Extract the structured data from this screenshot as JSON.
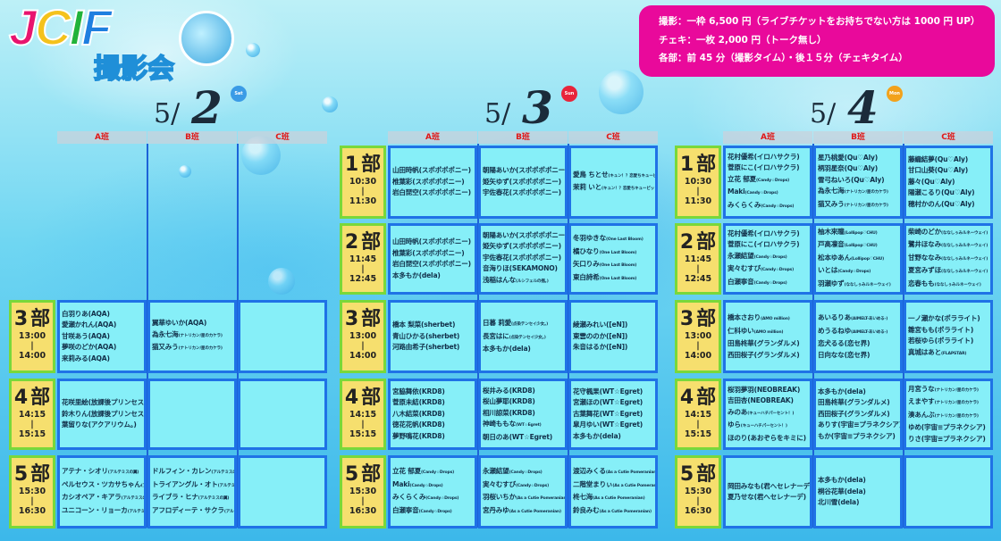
{
  "logo": {
    "letters": [
      "J",
      "C",
      "I",
      "F"
    ],
    "letter_colors": [
      "#e8146e",
      "#f4c21c",
      "#22b33a",
      "#1f7fe0"
    ],
    "subtitle": "撮影会"
  },
  "info": {
    "lines": [
      "撮影：一枠 6,500 円（ライブチケットをお持ちでない方は 1000 円 UP）",
      "チェキ：一枚 2,000 円（トーク無し）",
      "各部：前 45 分（撮影タイム）・後１５分（チェキタイム）"
    ]
  },
  "colors": {
    "info_bg": "#e9099b",
    "cell_bg": "#86eff8",
    "cell_border": "#1f72e6",
    "time_bg": "#f6df6e",
    "time_border": "#79d83a",
    "column_header_text": "#e01818"
  },
  "part_suffix": "部",
  "time_separator": "|",
  "days": [
    {
      "date_prefix": "5/",
      "date_num": "2",
      "weekday": "Sat",
      "weekday_color": "#3a9be6",
      "columns": [
        "A班",
        "B班",
        "C班"
      ],
      "sessions": [
        {
          "part": "3",
          "start": "13:00",
          "end": "14:00",
          "cells": [
            [
              [
                "白羽りあ",
                "(AQA)"
              ],
              [
                "愛瀬かれん",
                "(AQA)"
              ],
              [
                "甘咲あう",
                "(AQA)"
              ],
              [
                "夢咲のどか",
                "(AQA)"
              ],
              [
                "来莉みる",
                "(AQA)"
              ]
            ],
            [
              [
                "翼華ゆいか",
                "(AQA)"
              ],
              [
                "為永七海",
                "(ナトリカン/星のカケラ)"
              ],
              [
                "猫又みう",
                "(ナトリカン/星のカケラ)"
              ]
            ],
            []
          ]
        },
        {
          "part": "4",
          "start": "14:15",
          "end": "15:15",
          "cells": [
            [
              [
                "花咲里絵",
                "(放課後プリンセス)"
              ],
              [
                "鈴木りん",
                "(放課後プリンセス)"
              ],
              [
                "葉留りな",
                "(アクアリウム。)"
              ]
            ],
            [],
            []
          ]
        },
        {
          "part": "5",
          "start": "15:30",
          "end": "16:30",
          "cells": [
            [
              [
                "アテナ・シオリ",
                "(アルテミスの翼)"
              ],
              [
                "ペルセウス・ツカサちゃん",
                "(アルテミスの翼)"
              ],
              [
                "カシオペア・キアラ",
                "(アルテミスの翼)"
              ],
              [
                "ユニコーン・リョーカ",
                "(アルテミスの翼)"
              ]
            ],
            [
              [
                "ドルフィン・カレン",
                "(アルテミスの翼)"
              ],
              [
                "トライアングル・オト",
                "(アルテミスの翼)"
              ],
              [
                "ライブラ・ヒナ",
                "(アルテミスの翼)"
              ],
              [
                "アフロディーテ・サクラ",
                "(アルテミスの翼)"
              ]
            ],
            []
          ]
        }
      ]
    },
    {
      "date_prefix": "5/",
      "date_num": "3",
      "weekday": "Sun",
      "weekday_color": "#e8243a",
      "columns": [
        "A班",
        "B班",
        "C班"
      ],
      "sessions": [
        {
          "part": "1",
          "start": "10:30",
          "end": "11:30",
          "cells": [
            [
              [
                "山田時帆",
                "(スポポポポニー)"
              ],
              [
                "椎葉彩",
                "(スポポポポニー)"
              ],
              [
                "岩白琵空",
                "(スポポポポニー)"
              ]
            ],
            [
              [
                "朝陽あいか",
                "(スポポポポニー)"
              ],
              [
                "姫矢ゆず",
                "(スポポポポニー)"
              ],
              [
                "宇佐春花",
                "(スポポポポニー)"
              ]
            ],
            [
              [
                "愛鳥 ちとせ",
                "(キュン！？恋愛ちキューピッド)"
              ],
              [
                "茉莉 いと",
                "(キュン！？恋愛ちキューピッド)"
              ]
            ]
          ]
        },
        {
          "part": "2",
          "start": "11:45",
          "end": "12:45",
          "cells": [
            [
              [
                "山田時帆",
                "(スポポポポニー)"
              ],
              [
                "椎葉彩",
                "(スポポポポニー)"
              ],
              [
                "岩白琵空",
                "(スポポポポニー)"
              ],
              [
                "本多もか",
                "(dela)"
              ]
            ],
            [
              [
                "朝陽あいか",
                "(スポポポポニー)"
              ],
              [
                "姫矢ゆず",
                "(スポポポポニー)"
              ],
              [
                "宇佐春花",
                "(スポポポポニー)"
              ],
              [
                "音海りほ",
                "(SEKAMONO)"
              ],
              [
                "浅稲はんな",
                "(ルシフェルの揺。)"
              ]
            ],
            [
              [
                "冬羽ゆきな",
                "(One Last Bloom)"
              ],
              [
                "橘ひなり",
                "(One Last Bloom)"
              ],
              [
                "矢口りみ",
                "(One Last Bloom)"
              ],
              [
                "東白詩希",
                "(One Last Bloom)"
              ]
            ]
          ]
        },
        {
          "part": "3",
          "start": "13:00",
          "end": "14:00",
          "cells": [
            [
              [
                "橋本 梨菜",
                "(sherbet)"
              ],
              [
                "青山ひかる",
                "(sherbet)"
              ],
              [
                "河路由希子",
                "(sherbet)"
              ]
            ],
            [
              [
                "日暮 莉愛",
                "(点染テンセイ少女。)"
              ],
              [
                "長宮はに",
                "(点染テンセイ少女。)"
              ],
              [
                "本多もか",
                "(dela)"
              ]
            ],
            [
              [
                "綾瀬みれい",
                "([eN])"
              ],
              [
                "東雲ののか",
                "([eN])"
              ],
              [
                "朱音はるか",
                "([eN])"
              ]
            ]
          ]
        },
        {
          "part": "4",
          "start": "14:15",
          "end": "15:15",
          "cells": [
            [
              [
                "宮脇舞依",
                "(KRD8)"
              ],
              [
                "菅原未結",
                "(KRD8)"
              ],
              [
                "八木結菜",
                "(KRD8)"
              ],
              [
                "徳花花帆",
                "(KRD8)"
              ],
              [
                "夢野鳴花",
                "(KRD8)"
              ]
            ],
            [
              [
                "桜井みる",
                "(KRD8)"
              ],
              [
                "桜山夢耶",
                "(KRD8)"
              ],
              [
                "相川諒菜",
                "(KRD8)"
              ],
              [
                "神崎ももな",
                "(WT☆Egret)"
              ],
              [
                "朝日のあ",
                "(WT☆Egret)"
              ]
            ],
            [
              [
                "花守楓果",
                "(WT☆Egret)"
              ],
              [
                "宮瀬ほの",
                "(WT☆Egret)"
              ],
              [
                "古葉舞花",
                "(WT☆Egret)"
              ],
              [
                "皐月ゆい",
                "(WT☆Egret)"
              ],
              [
                "本多もか",
                "(dela)"
              ]
            ]
          ]
        },
        {
          "part": "5",
          "start": "15:30",
          "end": "16:30",
          "cells": [
            [
              [
                "立花 郁夏",
                "(Candy☆Drops)"
              ],
              [
                "Maki",
                "(Candy☆Drops)"
              ],
              [
                "みくらくみ",
                "(Candy☆Drops)"
              ],
              [
                "白瀬寧音",
                "(Candy☆Drops)"
              ]
            ],
            [
              [
                "永瀬結望",
                "(Candy☆Drops)"
              ],
              [
                "実々むすび",
                "(Candy☆Drops)"
              ],
              [
                "羽桜いちか",
                "(As a Cutie Pomeranian)"
              ],
              [
                "宮丹みゆ",
                "(As a Cutie Pomeranian)"
              ]
            ],
            [
              [
                "渡辺みくる",
                "(As a Cutie Pomeranian)"
              ],
              [
                "二階堂まりぃ",
                "(As a Cutie Pomeranian)"
              ],
              [
                "柊七海",
                "(As a Cutie Pomeranian)"
              ],
              [
                "鈴良みむ",
                "(As a Cutie Pomeranian)"
              ]
            ]
          ]
        }
      ]
    },
    {
      "date_prefix": "5/",
      "date_num": "4",
      "weekday": "Mon",
      "weekday_color": "#f2a21c",
      "columns": [
        "A班",
        "B班",
        "C班"
      ],
      "sessions": [
        {
          "part": "1",
          "start": "10:30",
          "end": "11:30",
          "cells": [
            [
              [
                "花村優希",
                "(イロハサクラ)"
              ],
              [
                "菅原にこ",
                "(イロハサクラ)"
              ],
              [
                "立花 郁夏",
                "(Candy☆Drops)"
              ],
              [
                "Maki",
                "(Candy☆Drops)"
              ],
              [
                "みくらくみ",
                "(Candy☆Drops)"
              ]
            ],
            [
              [
                "星乃桃愛",
                "(Qu♡Aly)"
              ],
              [
                "柄羽星奈",
                "(Qu♡Aly)"
              ],
              [
                "雪弓ねいろ",
                "(Qu♡Aly)"
              ],
              [
                "為永七海",
                "(ナトリカン/星のカケラ)"
              ],
              [
                "猫又みう",
                "(ナトリカン/星のカケラ)"
              ]
            ],
            [
              [
                "藤織結夢",
                "(Qu♡Aly)"
              ],
              [
                "甘口山葵",
                "(Qu♡Aly)"
              ],
              [
                "藤々",
                "(Qu♡Aly)"
              ],
              [
                "陽瀬こるり",
                "(Qu♡Aly)"
              ],
              [
                "穂村かのん",
                "(Qu♡Aly)"
              ]
            ]
          ]
        },
        {
          "part": "2",
          "start": "11:45",
          "end": "12:45",
          "cells": [
            [
              [
                "花村優希",
                "(イロハサクラ)"
              ],
              [
                "菅原にこ",
                "(イロハサクラ)"
              ],
              [
                "永瀬結望",
                "(Candy☆Drops)"
              ],
              [
                "実々むすび",
                "(Candy☆Drops)"
              ],
              [
                "白瀬寧音",
                "(Candy☆Drops)"
              ]
            ],
            [
              [
                "柚木來瞳",
                "(Lollipop♡CHU)"
              ],
              [
                "戸高凛音",
                "(Lollipop♡CHU)"
              ],
              [
                "松本ゆあん",
                "(Lollipop♡CHU)"
              ],
              [
                "いとは",
                "(Candy☆Drops)"
              ],
              [
                "羽瀬ゆず",
                "(ななしぅみルネーウェイ)"
              ]
            ],
            [
              [
                "柴崎のどか",
                "(ななしぅみルネーウェイ)"
              ],
              [
                "鷺井ほなみ",
                "(ななしぅみルネーウェイ)"
              ],
              [
                "甘野ななみ",
                "(ななしぅみルネーウェイ)"
              ],
              [
                "夏宮みずほ",
                "(ななしぅみルネーウェイ)"
              ],
              [
                "恋春もも",
                "(ななしぅみルネーウェイ)"
              ]
            ]
          ]
        },
        {
          "part": "3",
          "start": "13:00",
          "end": "14:00",
          "cells": [
            [
              [
                "橋本さおり",
                "(AMO million)"
              ],
              [
                "仁科ゆい",
                "(AMO million)"
              ],
              [
                "田島柊華",
                "(グランダルメ)"
              ],
              [
                "西田桜子",
                "(グランダルメ)"
              ]
            ],
            [
              [
                "あいるりあ",
                "(AIMELT-あいめる-)"
              ],
              [
                "めうるねゆ",
                "(AIMELT-あいめる-)"
              ],
              [
                "恋犬るる",
                "(恋セ界)"
              ],
              [
                "日向なな",
                "(恋セ界)"
              ]
            ],
            [
              [
                "一ノ瀬かな",
                "(ポラライト)"
              ],
              [
                "雛宮もも",
                "(ポラライト)"
              ],
              [
                "若桜ゆら",
                "(ポラライト)"
              ],
              [
                "真城はあと",
                "(FLAPSTAR)"
              ]
            ]
          ]
        },
        {
          "part": "4",
          "start": "14:15",
          "end": "15:15",
          "cells": [
            [
              [
                "桜羽夢羽",
                "(NEOBREAK)"
              ],
              [
                "吉田杏",
                "(NEOBREAK)"
              ],
              [
                "みのあ",
                "(キューハチパーセント！)"
              ],
              [
                "ゆら",
                "(キューハチパーセント！)"
              ],
              [
                "ほのり",
                "(あおぞらをキミに)"
              ]
            ],
            [
              [
                "本多もか",
                "(dela)"
              ],
              [
                "田島柊華",
                "(グランダルメ)"
              ],
              [
                "西田桜子",
                "(グランダルメ)"
              ],
              [
                "ありす",
                "(宇宙≡プラネクシア)"
              ],
              [
                "もか",
                "(宇宙≡プラネクシア)"
              ]
            ],
            [
              [
                "月宮うな",
                "(ナトリカン/星のカケラ)"
              ],
              [
                "えまやす",
                "(ナトリカン/星のカケラ)"
              ],
              [
                "湊あんぶ",
                "(ナトリカン/星のカケラ)"
              ],
              [
                "ゆめ",
                "(宇宙≡プラネクシア)"
              ],
              [
                "りさ",
                "(宇宙≡プラネクシア)"
              ]
            ]
          ]
        },
        {
          "part": "5",
          "start": "15:30",
          "end": "16:30",
          "cells": [
            [
              [
                "岡田みなも",
                "(君へセレナーデ)"
              ],
              [
                "夏乃せな",
                "(君へセレナーデ)"
              ]
            ],
            [
              [
                "本多もか",
                "(dela)"
              ],
              [
                "桐谷花華",
                "(dela)"
              ],
              [
                "北川雪",
                "(dela)"
              ]
            ],
            []
          ]
        }
      ]
    }
  ]
}
